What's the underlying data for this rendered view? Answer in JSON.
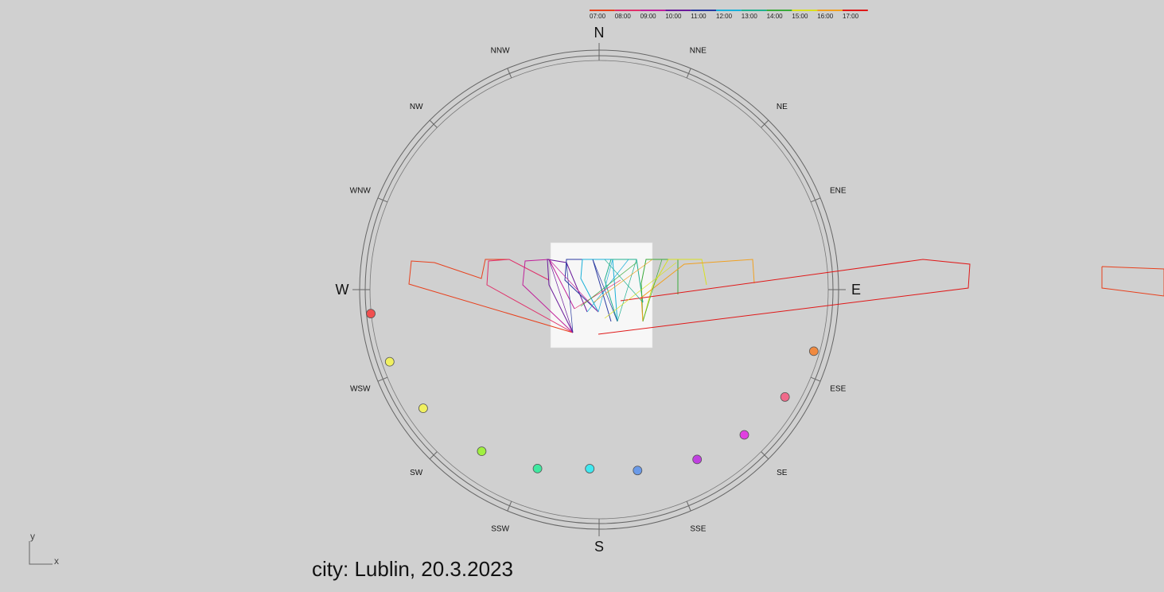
{
  "caption": "city: Lublin, 20.3.2023",
  "legend": {
    "items": [
      {
        "label": "07:00",
        "color": "#e8401c"
      },
      {
        "label": "08:00",
        "color": "#e0306a"
      },
      {
        "label": "09:00",
        "color": "#c0209a"
      },
      {
        "label": "10:00",
        "color": "#6a1a9a"
      },
      {
        "label": "11:00",
        "color": "#2a3aa0"
      },
      {
        "label": "12:00",
        "color": "#1ab0d8"
      },
      {
        "label": "13:00",
        "color": "#20b090"
      },
      {
        "label": "14:00",
        "color": "#3aaa3a"
      },
      {
        "label": "15:00",
        "color": "#d8e020"
      },
      {
        "label": "16:00",
        "color": "#f0a020"
      },
      {
        "label": "17:00",
        "color": "#e01818"
      }
    ]
  },
  "compass": {
    "cardinals": [
      {
        "label": "N",
        "azimuth": 0
      },
      {
        "label": "E",
        "azimuth": 90
      },
      {
        "label": "S",
        "azimuth": 180
      },
      {
        "label": "W",
        "azimuth": 270
      }
    ],
    "intercardinals": [
      {
        "label": "NNE",
        "azimuth": 22.5
      },
      {
        "label": "NE",
        "azimuth": 45
      },
      {
        "label": "ENE",
        "azimuth": 67.5
      },
      {
        "label": "ESE",
        "azimuth": 112.5
      },
      {
        "label": "SE",
        "azimuth": 135
      },
      {
        "label": "SSE",
        "azimuth": 157.5
      },
      {
        "label": "SSW",
        "azimuth": 202.5
      },
      {
        "label": "SW",
        "azimuth": 225
      },
      {
        "label": "WSW",
        "azimuth": 247.5
      },
      {
        "label": "WNW",
        "azimuth": 292.5
      },
      {
        "label": "NW",
        "azimuth": 315
      },
      {
        "label": "NNW",
        "azimuth": 337.5
      }
    ]
  },
  "sun_positions": [
    {
      "azimuth": 106,
      "color": "#f08a40"
    },
    {
      "azimuth": 120,
      "color": "#f06a8a"
    },
    {
      "azimuth": 135,
      "color": "#e040e0"
    },
    {
      "azimuth": 150,
      "color": "#c040e0"
    },
    {
      "azimuth": 168,
      "color": "#6a9ae8"
    },
    {
      "azimuth": 183,
      "color": "#40e8f0"
    },
    {
      "azimuth": 199,
      "color": "#40e8a0"
    },
    {
      "azimuth": 216,
      "color": "#a0f040"
    },
    {
      "azimuth": 236,
      "color": "#f0f060"
    },
    {
      "azimuth": 251,
      "color": "#f0f060"
    },
    {
      "azimuth": 264,
      "color": "#f05050"
    }
  ],
  "axes": {
    "x": "x",
    "y": "y"
  }
}
